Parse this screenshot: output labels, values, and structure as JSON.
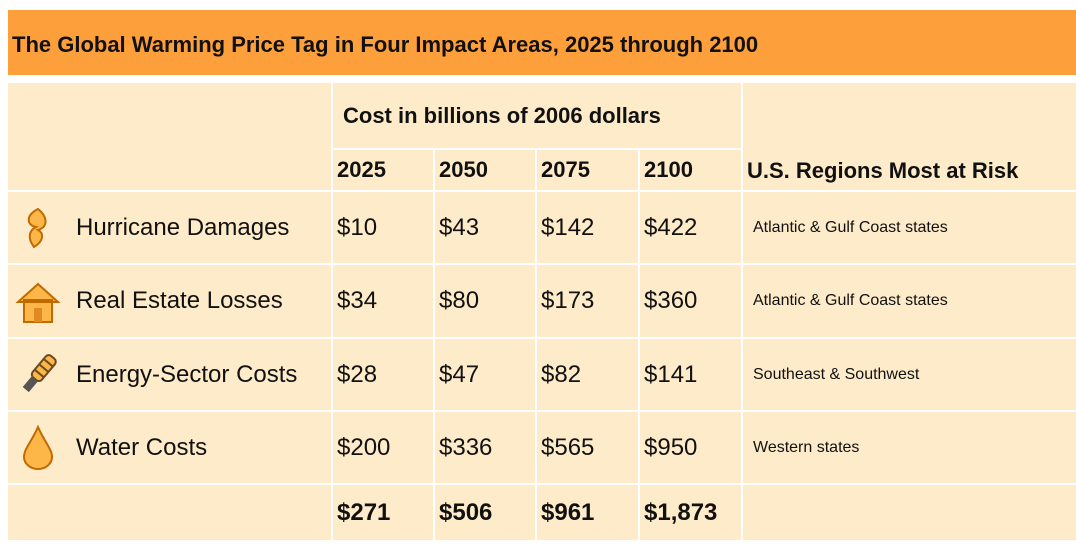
{
  "header": {
    "title": "The Global Warming Price Tag in Four Impact Areas, 2025 through 2100"
  },
  "table": {
    "cost_header": "Cost in billions of 2006 dollars",
    "years": [
      "2025",
      "2050",
      "2075",
      "2100"
    ],
    "region_header": "U.S. Regions Most at Risk",
    "rows": [
      {
        "label": "Hurricane Damages",
        "values": [
          "$10",
          "$43",
          "$142",
          "$422"
        ],
        "region": "Atlantic & Gulf Coast states"
      },
      {
        "label": "Real Estate Losses",
        "values": [
          "$34",
          "$80",
          "$173",
          "$360"
        ],
        "region": "Atlantic & Gulf Coast states"
      },
      {
        "label": "Energy-Sector Costs",
        "values": [
          "$28",
          "$47",
          "$82",
          "$141"
        ],
        "region": "Southeast & Southwest"
      },
      {
        "label": "Water Costs",
        "values": [
          "$200",
          "$336",
          "$565",
          "$950"
        ],
        "region": "Western states"
      }
    ],
    "totals": [
      "$271",
      "$506",
      "$961",
      "$1,873"
    ]
  }
}
